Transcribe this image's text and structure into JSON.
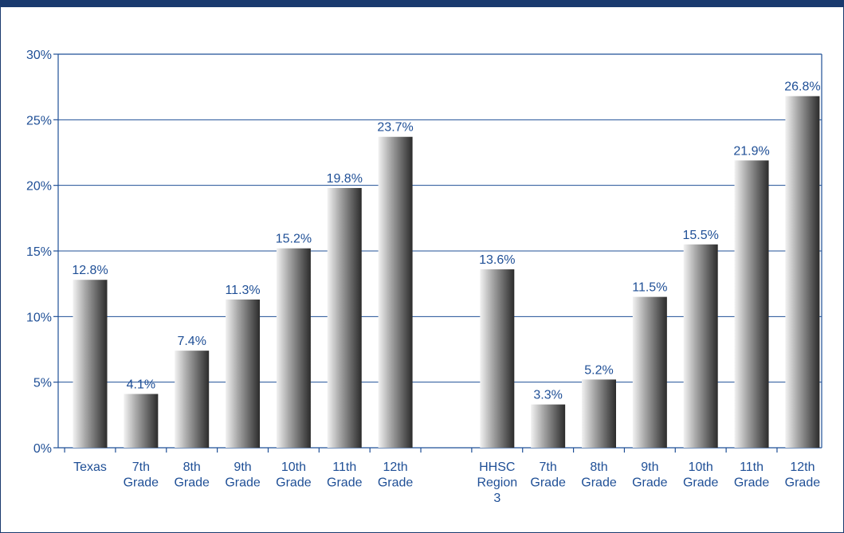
{
  "chart_data": {
    "type": "bar",
    "ylim": [
      0,
      30
    ],
    "yticks": [
      "0%",
      "5%",
      "10%",
      "15%",
      "20%",
      "25%",
      "30%"
    ],
    "ytick_values": [
      0,
      5,
      10,
      15,
      20,
      25,
      30
    ],
    "grid": true,
    "groups": [
      {
        "categories": [
          [
            "Texas"
          ],
          [
            "7th",
            "Grade"
          ],
          [
            "8th",
            "Grade"
          ],
          [
            "9th",
            "Grade"
          ],
          [
            "10th",
            "Grade"
          ],
          [
            "11th",
            "Grade"
          ],
          [
            "12th",
            "Grade"
          ]
        ],
        "values": [
          12.8,
          4.1,
          7.4,
          11.3,
          15.2,
          19.8,
          23.7
        ],
        "labels": [
          "12.8%",
          "4.1%",
          "7.4%",
          "11.3%",
          "15.2%",
          "19.8%",
          "23.7%"
        ]
      },
      {
        "categories": [
          [
            "HHSC",
            "Region",
            "3"
          ],
          [
            "7th",
            "Grade"
          ],
          [
            "8th",
            "Grade"
          ],
          [
            "9th",
            "Grade"
          ],
          [
            "10th",
            "Grade"
          ],
          [
            "11th",
            "Grade"
          ],
          [
            "12th",
            "Grade"
          ]
        ],
        "values": [
          13.6,
          3.3,
          5.2,
          11.5,
          15.5,
          21.9,
          26.8
        ],
        "labels": [
          "13.6%",
          "3.3%",
          "5.2%",
          "11.5%",
          "15.5%",
          "21.9%",
          "26.8%"
        ]
      }
    ]
  },
  "colors": {
    "frame": "#1a3a6e",
    "axis": "#1f4f96",
    "bar_light": "#f2f2f2",
    "bar_dark": "#2b2b2b"
  }
}
